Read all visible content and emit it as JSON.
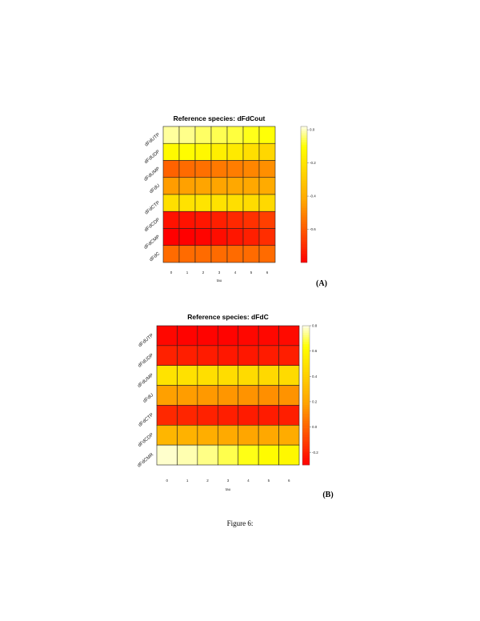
{
  "figure_caption": "Figure 6:",
  "chart_data": [
    {
      "type": "heatmap",
      "panel_label": "(A)",
      "title": "Reference species: dFdCout",
      "xlabel": "tau",
      "x": [
        "0",
        "1",
        "2",
        "3",
        "4",
        "5",
        "6"
      ],
      "rows": [
        "dFdUTP",
        "dFdUDP",
        "dFdUMP",
        "dFdU",
        "dFdCTP",
        "dFdCDP",
        "dFdCMP",
        "dFdC"
      ],
      "values": [
        [
          -0.02,
          -0.03,
          -0.05,
          -0.06,
          -0.07,
          -0.09,
          -0.1
        ],
        [
          -0.12,
          -0.11,
          -0.13,
          -0.16,
          -0.18,
          -0.22,
          -0.25
        ],
        [
          -0.58,
          -0.56,
          -0.55,
          -0.53,
          -0.52,
          -0.5,
          -0.48
        ],
        [
          -0.45,
          -0.44,
          -0.43,
          -0.43,
          -0.42,
          -0.42,
          -0.41
        ],
        [
          -0.22,
          -0.21,
          -0.2,
          -0.21,
          -0.22,
          -0.23,
          -0.24
        ],
        [
          -0.76,
          -0.76,
          -0.75,
          -0.73,
          -0.71,
          -0.69,
          -0.66
        ],
        [
          -0.8,
          -0.8,
          -0.79,
          -0.77,
          -0.75,
          -0.73,
          -0.7
        ],
        [
          -0.56,
          -0.56,
          -0.56,
          -0.56,
          -0.56,
          -0.56,
          -0.56
        ]
      ],
      "colorbar": {
        "min": -0.8,
        "max": 0.02,
        "ticks": [
          0.0,
          -0.2,
          -0.4,
          -0.6
        ],
        "tick_labels": [
          "0.0",
          "-0.2",
          "-0.4",
          "-0.6"
        ]
      },
      "colors": {
        "low": "#ff0000",
        "mid": "#ffa500",
        "high": "#ffff00",
        "top": "#ffffe8"
      }
    },
    {
      "type": "heatmap",
      "panel_label": "(B)",
      "title": "Reference species: dFdC",
      "xlabel": "tau",
      "x": [
        "0",
        "1",
        "2",
        "3",
        "4",
        "5",
        "6"
      ],
      "rows": [
        "dFdUTP",
        "dFdUDP",
        "dFdUMP",
        "dFdU",
        "dFdCTP",
        "dFdCDP",
        "dFdCMR"
      ],
      "values": [
        [
          -0.28,
          -0.29,
          -0.29,
          -0.29,
          -0.28,
          -0.28,
          -0.27
        ],
        [
          -0.2,
          -0.21,
          -0.22,
          -0.23,
          -0.23,
          -0.22,
          -0.21
        ],
        [
          0.5,
          0.49,
          0.48,
          0.47,
          0.46,
          0.45,
          0.46
        ],
        [
          0.18,
          0.17,
          0.16,
          0.15,
          0.14,
          0.13,
          0.14
        ],
        [
          -0.18,
          -0.19,
          -0.2,
          -0.21,
          -0.22,
          -0.22,
          -0.21
        ],
        [
          0.28,
          0.26,
          0.24,
          0.22,
          0.2,
          0.21,
          0.23
        ],
        [
          0.78,
          0.76,
          0.73,
          0.69,
          0.65,
          0.62,
          0.6
        ]
      ],
      "colorbar": {
        "min": -0.3,
        "max": 0.8,
        "ticks": [
          0.8,
          0.6,
          0.4,
          0.2,
          0.0,
          -0.2
        ],
        "tick_labels": [
          "0.8",
          "0.6",
          "0.4",
          "0.2",
          "0.0",
          "-0.2"
        ]
      },
      "colors": {
        "low": "#ff0000",
        "mid": "#ffa500",
        "high": "#ffff00",
        "top": "#ffffe8"
      }
    }
  ]
}
